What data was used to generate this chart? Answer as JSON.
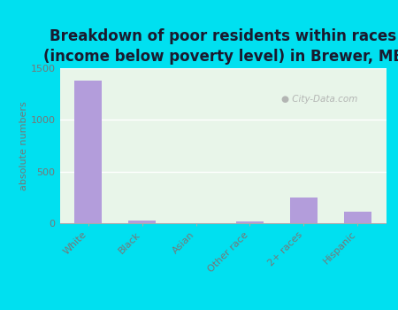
{
  "title": "Breakdown of poor residents within races\n(income below poverty level) in Brewer, ME",
  "categories": [
    "White",
    "Black",
    "Asian",
    "Other race",
    "2+ races",
    "Hispanic"
  ],
  "values": [
    1380,
    30,
    0,
    15,
    250,
    110
  ],
  "bar_color": "#b39ddb",
  "ylabel": "absolute numbers",
  "ylim": [
    0,
    1500
  ],
  "yticks": [
    0,
    500,
    1000,
    1500
  ],
  "background_outer": "#00e0f0",
  "background_inner_color": "#e8f5e9",
  "title_fontsize": 12,
  "axis_label_fontsize": 8,
  "tick_fontsize": 8,
  "watermark": "City-Data.com",
  "grid_color": "#ffffff",
  "tick_color": "#777777",
  "title_color": "#1a1a2e"
}
